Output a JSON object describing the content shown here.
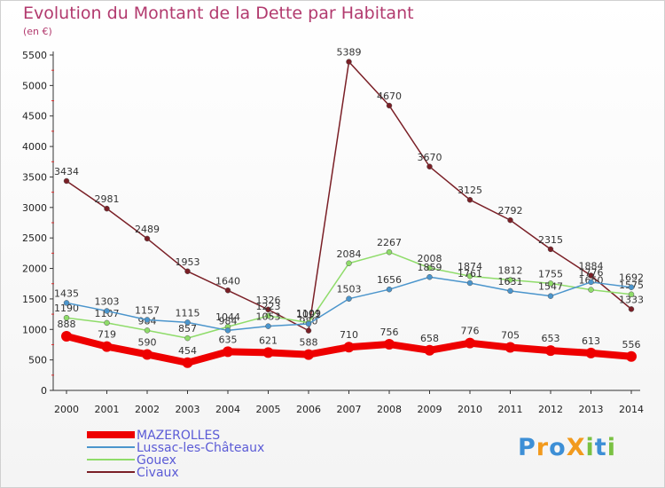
{
  "header": {
    "title": "Evolution du Montant de la Dette par Habitant",
    "subtitle": "(en €)"
  },
  "chart_data": {
    "type": "line",
    "x": [
      "2000",
      "2001",
      "2002",
      "2003",
      "2004",
      "2005",
      "2006",
      "2007",
      "2008",
      "2009",
      "2010",
      "2011",
      "2012",
      "2013",
      "2014"
    ],
    "ylim": [
      0,
      5500
    ],
    "yticks": [
      0,
      500,
      1000,
      1500,
      2000,
      2500,
      3000,
      3500,
      4000,
      4500,
      5000,
      5500
    ],
    "grid": false,
    "legend_position": "bottom-left",
    "series": [
      {
        "name": "Civaux",
        "color": "#7a1f26",
        "values": [
          3434,
          2981,
          2489,
          1953,
          1640,
          1326,
          980,
          5389,
          4670,
          3670,
          3125,
          2792,
          2315,
          1884,
          1333
        ]
      },
      {
        "name": "Gouex",
        "color": "#8fdc6a",
        "values": [
          1190,
          1107,
          984,
          857,
          1044,
          1223,
          1109,
          2084,
          2267,
          2008,
          1874,
          1812,
          1755,
          1650,
          1575
        ]
      },
      {
        "name": "Lussac-les-Châteaux",
        "color": "#4b95cc",
        "values": [
          1435,
          1303,
          1157,
          1115,
          984,
          1053,
          1091,
          1503,
          1656,
          1859,
          1761,
          1631,
          1547,
          1776,
          1692
        ]
      },
      {
        "name": "MAZEROLLES",
        "color": "#ee0000",
        "values": [
          888,
          719,
          590,
          454,
          635,
          621,
          588,
          710,
          756,
          658,
          776,
          705,
          653,
          613,
          556
        ]
      }
    ]
  },
  "legend": {
    "items": [
      {
        "label": "MAZEROLLES",
        "color": "#ee0000"
      },
      {
        "label": "Lussac-les-Châteaux",
        "color": "#4b95cc"
      },
      {
        "label": "Gouex",
        "color": "#8fdc6a"
      },
      {
        "label": "Civaux",
        "color": "#7a1f26"
      }
    ]
  },
  "logo": {
    "text": "ProXiti",
    "letters": [
      "P",
      "r",
      "o",
      "X",
      "i",
      "t",
      "i"
    ],
    "colors": [
      "#3d8fd6",
      "#f29a1d",
      "#3d8fd6",
      "#f29a1d",
      "#7ac143",
      "#3d8fd6",
      "#7ac143"
    ]
  }
}
